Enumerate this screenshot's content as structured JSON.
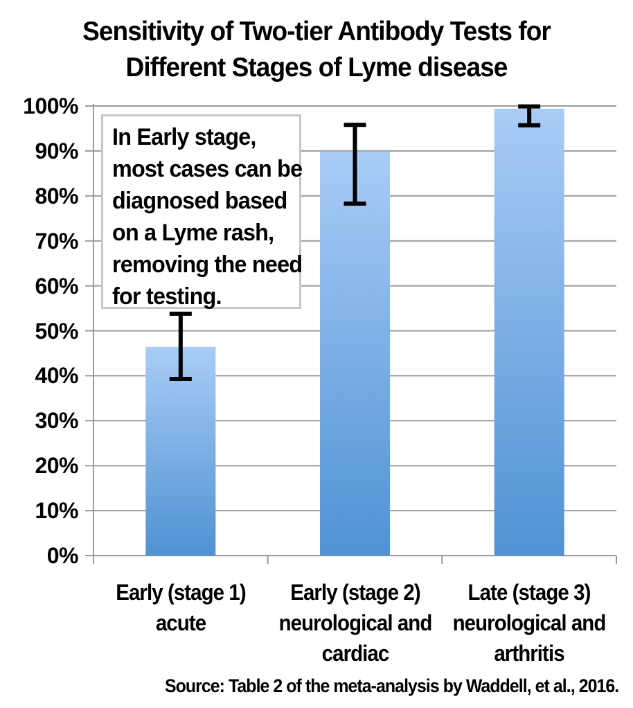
{
  "title": {
    "line1": "Sensitivity of Two-tier Antibody Tests for",
    "line2": "Different Stages of Lyme disease",
    "full": "Sensitivity of Two-tier Antibody Tests for Different Stages of Lyme disease"
  },
  "annotation": {
    "text": "In Early stage, most cases can be diagnosed based on a Lyme rash, removing the need for testing.",
    "lines": [
      "In Early stage,",
      "most cases can be",
      "diagnosed based",
      "on a Lyme rash,",
      "removing the need",
      "for testing."
    ]
  },
  "source": "Source: Table 2 of the meta-analysis by Waddell, et al., 2016.",
  "colors": {
    "bar_gradient_top": "#a9ccf7",
    "bar_gradient_bottom": "#4f92d3",
    "grid": "#999999",
    "error_bar": "#000000",
    "annotation_border": "#c6c6c6",
    "background": "#ffffff",
    "text": "#000000"
  },
  "chart_data": {
    "type": "bar",
    "title": "Sensitivity of Two-tier Antibody Tests for Different Stages of Lyme disease",
    "categories": [
      "Early (stage 1) acute",
      "Early (stage 2) neurological and cardiac",
      "Late (stage 3) neurological and arthritis"
    ],
    "categories_lines": [
      [
        "Early (stage 1)",
        "acute"
      ],
      [
        "Early (stage 2)",
        "neurological and",
        "cardiac"
      ],
      [
        "Late (stage 3)",
        "neurological and",
        "arthritis"
      ]
    ],
    "values": [
      46.4,
      89.9,
      99.4
    ],
    "error_bars_95ci": [
      [
        39.3,
        53.8
      ],
      [
        78.3,
        95.8
      ],
      [
        95.7,
        99.9
      ]
    ],
    "y_ticks": [
      "0%",
      "10%",
      "20%",
      "30%",
      "40%",
      "50%",
      "60%",
      "70%",
      "80%",
      "90%",
      "100%"
    ],
    "ylim": [
      0,
      100
    ],
    "grid": true,
    "legend_position": "none",
    "annotation": "In Early stage, most cases can be diagnosed based on a Lyme rash, removing the need for testing.",
    "source_note": "Source: Table 2 of the meta-analysis by Waddell, et al., 2016."
  }
}
